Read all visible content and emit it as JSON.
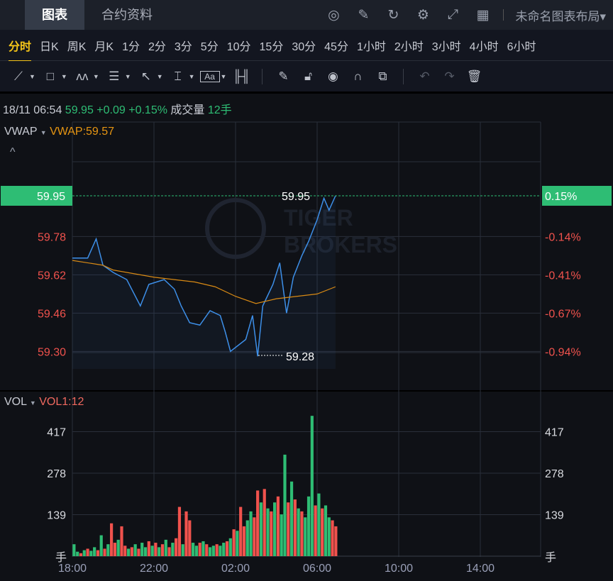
{
  "header": {
    "tabs": [
      {
        "label": "图表",
        "active": true
      },
      {
        "label": "合约资料",
        "active": false
      }
    ],
    "icons": [
      "speedometer-icon",
      "edit-icon",
      "refresh-icon",
      "settings-icon",
      "fullscreen-icon",
      "layout-grid-icon"
    ],
    "layout_label": "未命名图表布局▾"
  },
  "timeframes": [
    "分时",
    "日K",
    "周K",
    "月K",
    "1分",
    "2分",
    "3分",
    "5分",
    "10分",
    "15分",
    "30分",
    "45分",
    "1小时",
    "2小时",
    "3小时",
    "4小时",
    "6小时"
  ],
  "active_timeframe": "分时",
  "toolbar": {
    "tools": [
      "trendline-icon",
      "rectangle-icon",
      "pattern-icon",
      "fibonacci-icon",
      "arrow-icon",
      "measure-icon",
      "text-icon",
      "candles-icon",
      "pencil-icon",
      "unlock-icon",
      "eye-icon",
      "magnet-icon",
      "clone-icon",
      "undo-icon",
      "redo-icon",
      "trash-icon"
    ]
  },
  "info": {
    "datetime": "18/11 06:54",
    "price": "59.95",
    "change": "+0.09",
    "change_pct": "+0.15%",
    "volume_label": "成交量",
    "volume": "12手"
  },
  "indicator": {
    "name": "VWAP",
    "value_label": "VWAP:59.57",
    "collapse": "^"
  },
  "vol_indicator": {
    "name": "VOL",
    "value_label": "VOL1:12"
  },
  "watermark": "TIGER BROKERS",
  "colors": {
    "up": "#2ebd74",
    "down": "#f0524d",
    "line": "#3d8fe8",
    "vwap": "#d98a14",
    "current": "#2ebd74"
  },
  "chart_data": [
    {
      "type": "line",
      "title": "",
      "x_ticks": [
        "18:00",
        "22:00",
        "02:00",
        "06:00",
        "10:00",
        "14:00"
      ],
      "y_ticks": [
        "59.95",
        "59.78",
        "59.62",
        "59.46",
        "59.30"
      ],
      "y_ticks_right": [
        "0.15%",
        "-0.14%",
        "-0.41%",
        "-0.67%",
        "-0.94%"
      ],
      "ylim": [
        59.25,
        60.02
      ],
      "current_price": "59.95",
      "current_pct": "0.15%",
      "high_label": "59.95",
      "low_label": "59.28",
      "series": [
        {
          "name": "",
          "times": [
            "18:00",
            "18:45",
            "19:10",
            "19:30",
            "20:00",
            "20:40",
            "21:20",
            "21:45",
            "22:30",
            "23:00",
            "23:20",
            "23:45",
            "00:15",
            "00:45",
            "01:15",
            "01:30",
            "01:45",
            "02:30",
            "02:50",
            "03:05",
            "03:20",
            "03:50",
            "04:10",
            "04:30",
            "04:50",
            "05:15",
            "05:35",
            "06:00",
            "06:20",
            "06:35",
            "06:54"
          ],
          "values": [
            59.69,
            59.69,
            59.77,
            59.66,
            59.63,
            59.6,
            59.49,
            59.58,
            59.6,
            59.56,
            59.49,
            59.42,
            59.41,
            59.47,
            59.45,
            59.38,
            59.3,
            59.35,
            59.45,
            59.28,
            59.49,
            59.58,
            59.67,
            59.46,
            59.61,
            59.7,
            59.76,
            59.85,
            59.94,
            59.89,
            59.95
          ]
        },
        {
          "name": "VWAP",
          "times": [
            "18:00",
            "19:30",
            "20:00",
            "22:00",
            "00:00",
            "01:00",
            "02:00",
            "03:00",
            "04:00",
            "05:00",
            "06:00",
            "06:54"
          ],
          "values": [
            59.68,
            59.66,
            59.64,
            59.61,
            59.59,
            59.57,
            59.53,
            59.5,
            59.52,
            59.53,
            59.54,
            59.57
          ]
        }
      ]
    },
    {
      "type": "bar",
      "title": "",
      "x_ticks": [
        "18:00",
        "22:00",
        "02:00",
        "06:00",
        "10:00",
        "14:00"
      ],
      "y_ticks": [
        "417",
        "278",
        "139",
        "手"
      ],
      "ylim": [
        0,
        556
      ],
      "start": "18:00",
      "interval_min": 10,
      "values": [
        40,
        15,
        10,
        20,
        25,
        18,
        30,
        20,
        70,
        25,
        40,
        110,
        45,
        55,
        100,
        35,
        25,
        30,
        40,
        25,
        45,
        30,
        50,
        35,
        45,
        30,
        40,
        55,
        30,
        45,
        60,
        165,
        40,
        150,
        120,
        45,
        35,
        45,
        50,
        40,
        30,
        35,
        40,
        35,
        45,
        50,
        60,
        90,
        85,
        165,
        100,
        120,
        150,
        130,
        220,
        180,
        225,
        160,
        150,
        180,
        200,
        140,
        340,
        180,
        250,
        190,
        160,
        150,
        130,
        200,
        470,
        170,
        210,
        160,
        170,
        130,
        120,
        100
      ],
      "directions": [
        "u",
        "u",
        "d",
        "u",
        "d",
        "u",
        "u",
        "d",
        "u",
        "d",
        "u",
        "d",
        "d",
        "u",
        "d",
        "d",
        "u",
        "d",
        "u",
        "d",
        "u",
        "u",
        "d",
        "u",
        "d",
        "u",
        "d",
        "u",
        "d",
        "u",
        "d",
        "d",
        "u",
        "d",
        "d",
        "u",
        "u",
        "d",
        "u",
        "d",
        "u",
        "u",
        "d",
        "u",
        "u",
        "d",
        "u",
        "d",
        "u",
        "d",
        "d",
        "u",
        "u",
        "d",
        "d",
        "u",
        "d",
        "u",
        "d",
        "u",
        "d",
        "u",
        "u",
        "d",
        "u",
        "d",
        "u",
        "d",
        "u",
        "u",
        "u",
        "d",
        "u",
        "d",
        "u",
        "u",
        "d",
        "d"
      ]
    }
  ]
}
